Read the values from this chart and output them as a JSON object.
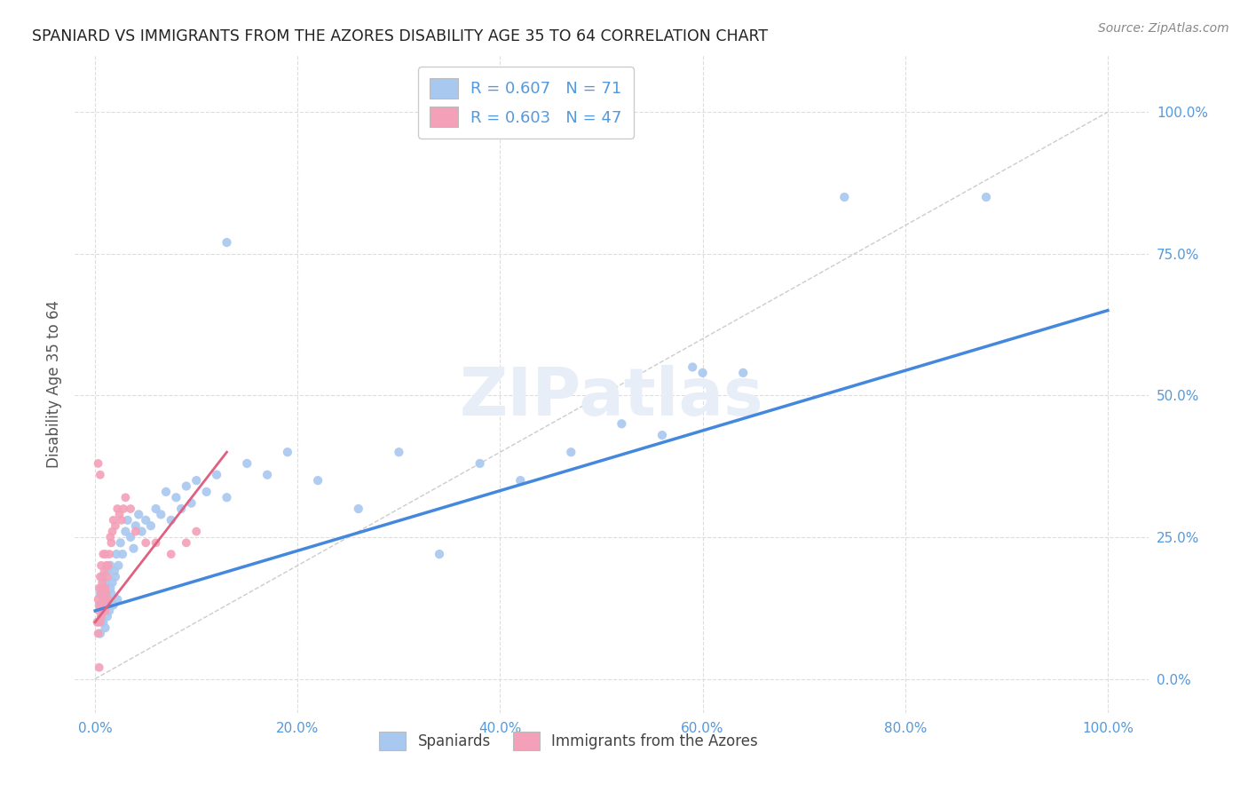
{
  "title": "SPANIARD VS IMMIGRANTS FROM THE AZORES DISABILITY AGE 35 TO 64 CORRELATION CHART",
  "source": "Source: ZipAtlas.com",
  "ylabel": "Disability Age 35 to 64",
  "x_tick_labels": [
    "0.0%",
    "20.0%",
    "40.0%",
    "60.0%",
    "80.0%",
    "100.0%"
  ],
  "y_tick_labels": [
    "0.0%",
    "25.0%",
    "50.0%",
    "75.0%",
    "100.0%"
  ],
  "x_ticks": [
    0.0,
    0.2,
    0.4,
    0.6,
    0.8,
    1.0
  ],
  "y_ticks": [
    0.0,
    0.25,
    0.5,
    0.75,
    1.0
  ],
  "xlim": [
    -0.02,
    1.04
  ],
  "ylim": [
    -0.06,
    1.1
  ],
  "legend_label1": "R = 0.607   N = 71",
  "legend_label2": "R = 0.603   N = 47",
  "legend_label_bottom1": "Spaniards",
  "legend_label_bottom2": "Immigrants from the Azores",
  "color_blue": "#a8c8f0",
  "color_pink": "#f4a0b8",
  "line_color_blue": "#4488dd",
  "line_color_pink": "#e06080",
  "axis_tick_color": "#5599dd",
  "background_color": "#ffffff",
  "grid_color": "#dddddd",
  "title_color": "#222222",
  "source_color": "#888888",
  "ylabel_color": "#555555",
  "watermark_color": "#e8eef8",
  "spaniards_x": [
    0.003,
    0.004,
    0.005,
    0.005,
    0.006,
    0.006,
    0.007,
    0.007,
    0.008,
    0.008,
    0.009,
    0.009,
    0.01,
    0.01,
    0.011,
    0.011,
    0.012,
    0.012,
    0.013,
    0.014,
    0.015,
    0.015,
    0.016,
    0.017,
    0.018,
    0.019,
    0.02,
    0.021,
    0.022,
    0.023,
    0.025,
    0.027,
    0.03,
    0.032,
    0.035,
    0.038,
    0.04,
    0.043,
    0.046,
    0.05,
    0.055,
    0.06,
    0.065,
    0.07,
    0.075,
    0.08,
    0.085,
    0.09,
    0.095,
    0.1,
    0.11,
    0.12,
    0.13,
    0.15,
    0.17,
    0.19,
    0.22,
    0.26,
    0.3,
    0.34,
    0.38,
    0.42,
    0.47,
    0.52,
    0.56,
    0.6,
    0.64,
    0.13,
    0.59,
    0.74,
    0.88
  ],
  "spaniards_y": [
    0.1,
    0.13,
    0.08,
    0.15,
    0.11,
    0.16,
    0.12,
    0.18,
    0.14,
    0.1,
    0.16,
    0.12,
    0.09,
    0.17,
    0.13,
    0.15,
    0.11,
    0.19,
    0.14,
    0.12,
    0.16,
    0.2,
    0.15,
    0.17,
    0.13,
    0.19,
    0.18,
    0.22,
    0.14,
    0.2,
    0.24,
    0.22,
    0.26,
    0.28,
    0.25,
    0.23,
    0.27,
    0.29,
    0.26,
    0.28,
    0.27,
    0.3,
    0.29,
    0.33,
    0.28,
    0.32,
    0.3,
    0.34,
    0.31,
    0.35,
    0.33,
    0.36,
    0.32,
    0.38,
    0.36,
    0.4,
    0.35,
    0.3,
    0.4,
    0.22,
    0.38,
    0.35,
    0.4,
    0.45,
    0.43,
    0.54,
    0.54,
    0.77,
    0.55,
    0.85,
    0.85
  ],
  "azores_x": [
    0.002,
    0.003,
    0.003,
    0.004,
    0.004,
    0.005,
    0.005,
    0.005,
    0.006,
    0.006,
    0.006,
    0.007,
    0.007,
    0.008,
    0.008,
    0.008,
    0.009,
    0.009,
    0.01,
    0.01,
    0.01,
    0.011,
    0.011,
    0.012,
    0.012,
    0.013,
    0.014,
    0.015,
    0.016,
    0.017,
    0.018,
    0.02,
    0.022,
    0.024,
    0.026,
    0.028,
    0.03,
    0.035,
    0.04,
    0.05,
    0.06,
    0.075,
    0.09,
    0.1,
    0.005,
    0.004,
    0.003
  ],
  "azores_y": [
    0.1,
    0.08,
    0.14,
    0.12,
    0.16,
    0.1,
    0.13,
    0.18,
    0.11,
    0.15,
    0.2,
    0.13,
    0.17,
    0.12,
    0.16,
    0.22,
    0.14,
    0.19,
    0.12,
    0.16,
    0.22,
    0.15,
    0.2,
    0.14,
    0.18,
    0.2,
    0.22,
    0.25,
    0.24,
    0.26,
    0.28,
    0.27,
    0.3,
    0.29,
    0.28,
    0.3,
    0.32,
    0.3,
    0.26,
    0.24,
    0.24,
    0.22,
    0.24,
    0.26,
    0.36,
    0.02,
    0.38
  ],
  "blue_line_x": [
    0.0,
    1.0
  ],
  "blue_line_y": [
    0.12,
    0.65
  ],
  "pink_line_x": [
    0.0,
    0.13
  ],
  "pink_line_y": [
    0.1,
    0.4
  ]
}
